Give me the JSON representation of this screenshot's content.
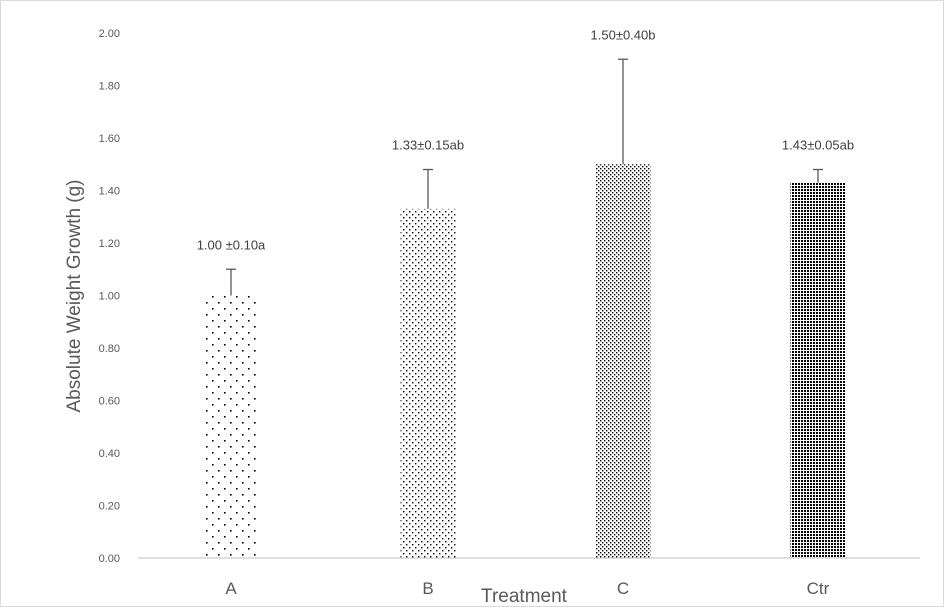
{
  "chart_data": {
    "type": "bar",
    "title": "",
    "xlabel": "Treatment",
    "ylabel": "Absolute Weight Growth (g)",
    "categories": [
      "A",
      "B",
      "C",
      "Ctr"
    ],
    "values": [
      1.0,
      1.33,
      1.5,
      1.43
    ],
    "errors": [
      0.1,
      0.15,
      0.4,
      0.05
    ],
    "data_labels": [
      "1.00 ±0.10a",
      "1.33±0.15ab",
      "1.50±0.40b",
      "1.43±0.05ab"
    ],
    "ylim": [
      0,
      2.0
    ],
    "yticks": [
      "0.00",
      "0.20",
      "0.40",
      "0.60",
      "0.80",
      "1.00",
      "1.20",
      "1.40",
      "1.60",
      "1.80",
      "2.00"
    ],
    "grid": false,
    "legend": "none",
    "bar_patterns": [
      "sparse-dots",
      "medium-dots",
      "dense-dots",
      "dense-checker"
    ],
    "colors": {
      "pattern": "#000000",
      "axis": "#bfbfbf",
      "text": "#595959",
      "error_bar": "#595959"
    }
  }
}
